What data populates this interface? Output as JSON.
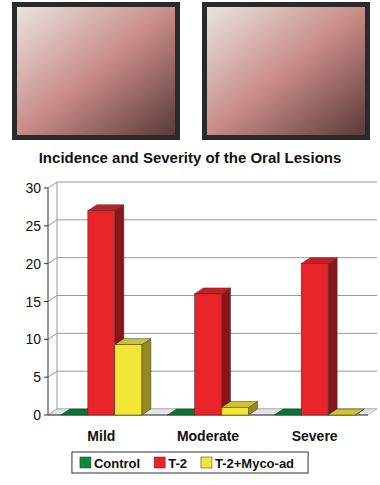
{
  "chart_data": {
    "type": "bar",
    "title": "Incidence and Severity of the Oral Lesions",
    "categories": [
      "Mild",
      "Moderate",
      "Severe"
    ],
    "series": [
      {
        "name": "Control",
        "color": "#0b8a3c",
        "values": [
          0,
          0,
          0
        ]
      },
      {
        "name": "T-2",
        "color": "#e8242a",
        "values": [
          27,
          16,
          20
        ]
      },
      {
        "name": "T-2+Myco-ad",
        "color": "#f3e634",
        "values": [
          9.3,
          1,
          0
        ]
      }
    ],
    "ylim": [
      0,
      30
    ],
    "yticks": [
      0,
      5,
      10,
      15,
      20,
      25,
      30
    ],
    "grid": true,
    "legend": "bottom"
  }
}
